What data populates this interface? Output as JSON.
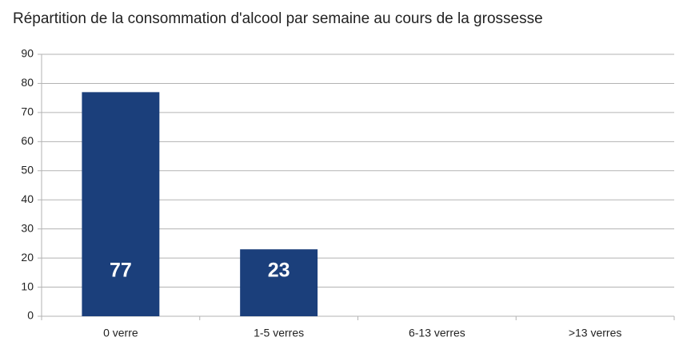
{
  "chart_data": {
    "type": "bar",
    "title": "Répartition de la consommation d'alcool par semaine au cours de la grossesse",
    "categories": [
      "0 verre",
      "1-5 verres",
      "6-13 verres",
      ">13 verres"
    ],
    "values": [
      77,
      23,
      null,
      null
    ],
    "color": "#1b3f7b",
    "ylim": [
      0,
      90
    ],
    "yticks": [
      0,
      10,
      20,
      30,
      40,
      50,
      60,
      70,
      80,
      90
    ],
    "grid": true
  }
}
